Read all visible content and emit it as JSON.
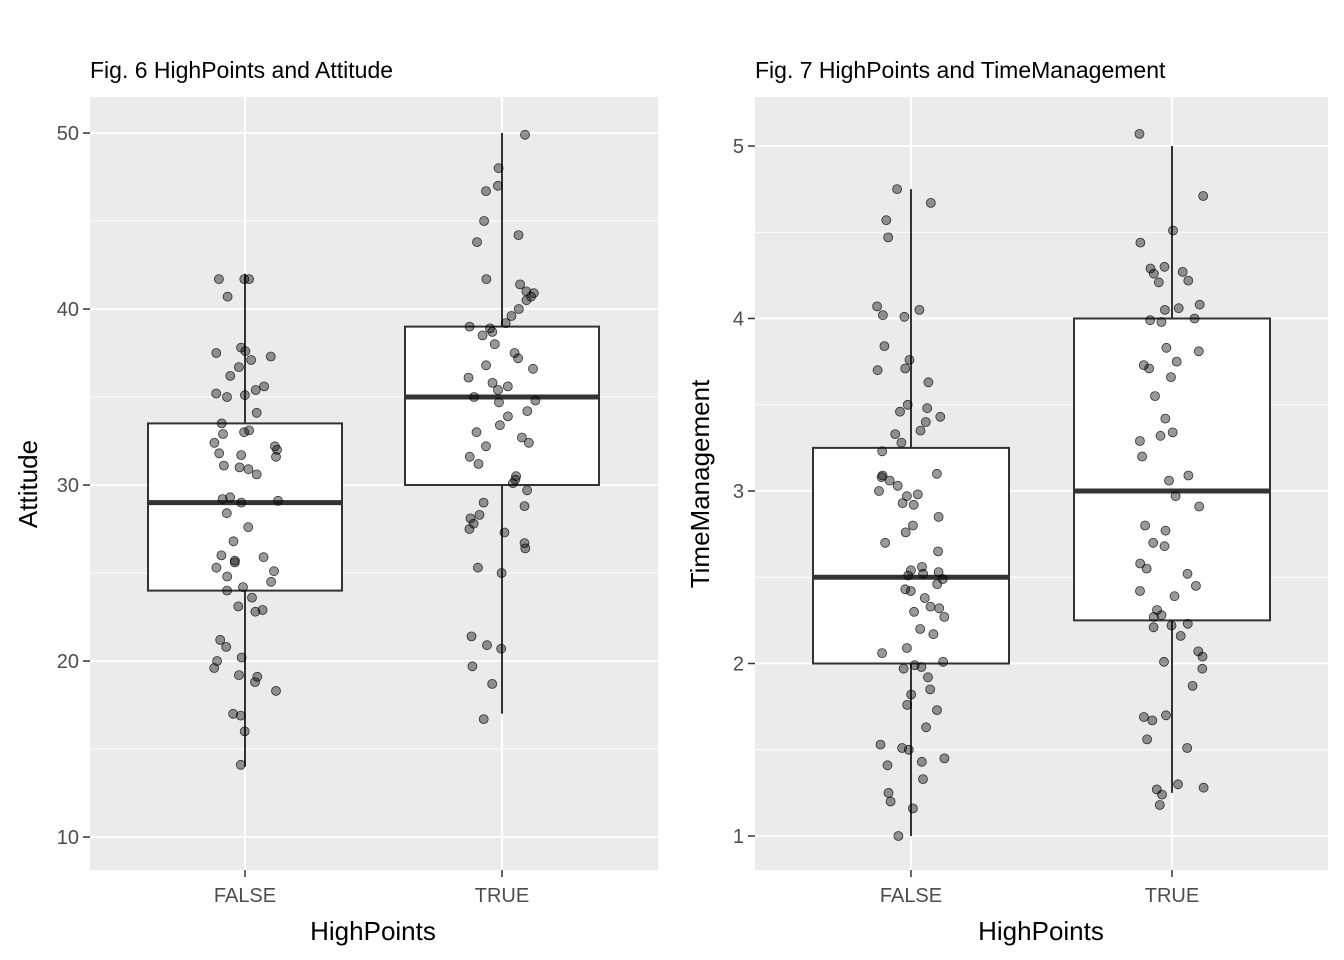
{
  "chart_data": [
    {
      "type": "boxplot",
      "title": "Fig. 6 HighPoints and Attitude",
      "xlabel": "HighPoints",
      "ylabel": "Attitude",
      "categories": [
        "FALSE",
        "TRUE"
      ],
      "ylim": [
        8,
        52
      ],
      "yticks": [
        10,
        20,
        30,
        40,
        50
      ],
      "grid": true,
      "boxes": [
        {
          "category": "FALSE",
          "min": 14,
          "q1": 24,
          "median": 29,
          "q3": 33.5,
          "max": 42
        },
        {
          "category": "TRUE",
          "min": 17,
          "q1": 30,
          "median": 35,
          "q3": 39,
          "max": 50
        }
      ],
      "points": {
        "FALSE": [
          41.7,
          41.7,
          41.7,
          40.7,
          37.8,
          37.6,
          37.5,
          37.3,
          37.1,
          36.7,
          36.2,
          35.6,
          35.4,
          35.2,
          35.1,
          35.0,
          34.1,
          33.5,
          33.1,
          33.0,
          32.9,
          32.4,
          32.2,
          32.0,
          31.8,
          31.7,
          31.6,
          31.1,
          31.0,
          30.9,
          30.6,
          29.3,
          29.2,
          29.1,
          29.0,
          28.4,
          27.6,
          26.8,
          26.0,
          25.9,
          25.7,
          25.6,
          25.3,
          25.1,
          24.8,
          24.5,
          24.2,
          24.0,
          23.6,
          23.1,
          22.9,
          22.8,
          21.2,
          20.8,
          20.2,
          20.0,
          19.6,
          19.2,
          19.1,
          18.8,
          18.3,
          17.0,
          16.9,
          16.0,
          14.1
        ],
        "TRUE": [
          49.9,
          48.0,
          47.0,
          46.7,
          45.0,
          44.2,
          43.8,
          41.7,
          41.4,
          41.0,
          40.9,
          40.7,
          40.5,
          40.0,
          39.6,
          39.2,
          39.0,
          38.9,
          38.7,
          38.5,
          38.0,
          37.5,
          37.2,
          36.8,
          36.6,
          36.1,
          35.8,
          35.6,
          35.4,
          35.0,
          34.8,
          34.7,
          34.2,
          33.9,
          33.4,
          33.0,
          32.7,
          32.4,
          32.2,
          31.6,
          31.2,
          30.5,
          30.3,
          30.1,
          29.7,
          29.0,
          28.8,
          28.3,
          28.1,
          27.8,
          27.5,
          27.3,
          26.7,
          26.4,
          25.3,
          25.0,
          21.4,
          20.9,
          20.7,
          19.7,
          18.7,
          16.7
        ]
      }
    },
    {
      "type": "boxplot",
      "title": "Fig. 7 HighPoints and TimeManagement",
      "xlabel": "HighPoints",
      "ylabel": "TimeManagement",
      "categories": [
        "FALSE",
        "TRUE"
      ],
      "ylim": [
        0.8,
        5.2
      ],
      "yticks": [
        1,
        2,
        3,
        4,
        5
      ],
      "grid": true,
      "boxes": [
        {
          "category": "FALSE",
          "min": 1,
          "q1": 2,
          "median": 2.5,
          "q3": 3.25,
          "max": 4.75
        },
        {
          "category": "TRUE",
          "min": 1.25,
          "q1": 2.25,
          "median": 3,
          "q3": 4,
          "max": 5
        }
      ],
      "points": {
        "FALSE": [
          4.75,
          4.67,
          4.57,
          4.47,
          4.07,
          4.05,
          4.02,
          4.01,
          3.84,
          3.76,
          3.71,
          3.7,
          3.63,
          3.5,
          3.48,
          3.46,
          3.43,
          3.4,
          3.35,
          3.33,
          3.28,
          3.23,
          3.1,
          3.09,
          3.08,
          3.06,
          3.03,
          3.0,
          2.98,
          2.97,
          2.93,
          2.92,
          2.85,
          2.8,
          2.76,
          2.7,
          2.65,
          2.56,
          2.54,
          2.53,
          2.52,
          2.51,
          2.49,
          2.46,
          2.43,
          2.42,
          2.38,
          2.33,
          2.32,
          2.3,
          2.27,
          2.2,
          2.17,
          2.09,
          2.06,
          2.01,
          1.99,
          1.98,
          1.97,
          1.92,
          1.85,
          1.82,
          1.76,
          1.73,
          1.63,
          1.53,
          1.51,
          1.5,
          1.45,
          1.43,
          1.41,
          1.33,
          1.25,
          1.2,
          1.16,
          1.0
        ],
        "TRUE": [
          5.07,
          4.71,
          4.51,
          4.44,
          4.3,
          4.29,
          4.27,
          4.26,
          4.22,
          4.21,
          4.08,
          4.06,
          4.05,
          4.0,
          3.99,
          3.98,
          3.83,
          3.81,
          3.75,
          3.73,
          3.71,
          3.66,
          3.55,
          3.42,
          3.34,
          3.32,
          3.29,
          3.2,
          3.09,
          3.06,
          2.97,
          2.91,
          2.8,
          2.77,
          2.7,
          2.68,
          2.58,
          2.55,
          2.52,
          2.45,
          2.42,
          2.39,
          2.31,
          2.28,
          2.27,
          2.23,
          2.22,
          2.21,
          2.16,
          2.07,
          2.04,
          2.01,
          1.97,
          1.87,
          1.7,
          1.69,
          1.67,
          1.56,
          1.51,
          1.3,
          1.28,
          1.27,
          1.24,
          1.18
        ]
      }
    }
  ]
}
